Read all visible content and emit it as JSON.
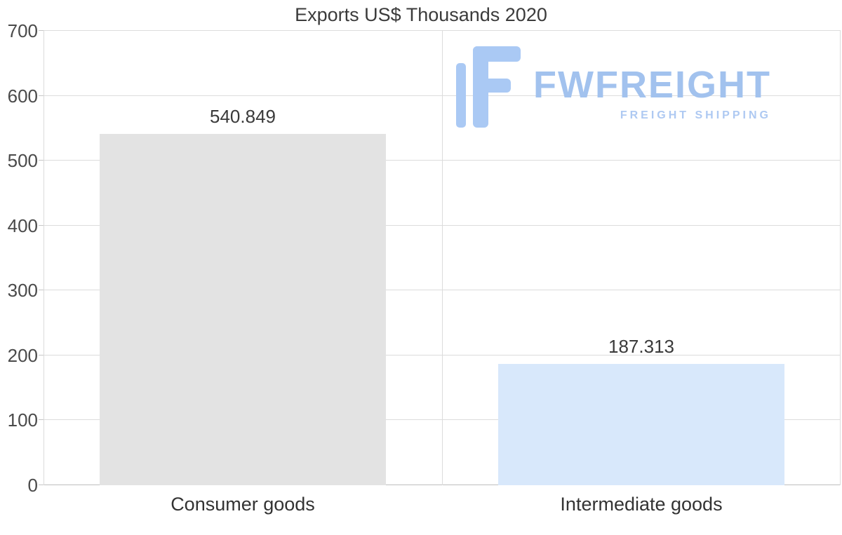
{
  "title": "Exports US$ Thousands 2020",
  "watermark": {
    "brand": "FWFREIGHT",
    "tagline": "FREIGHT SHIPPING",
    "icon": "fwfreight-logo-icon",
    "brand_color": "#a2c2ee"
  },
  "chart_data": {
    "type": "bar",
    "title": "Exports US$ Thousands 2020",
    "categories": [
      "Consumer goods",
      "Intermediate goods"
    ],
    "values": [
      540.849,
      187.313
    ],
    "value_labels": [
      "540.849",
      "187.313"
    ],
    "bar_colors": [
      "#e3e3e3",
      "#d8e8fb"
    ],
    "xlabel": "",
    "ylabel": "",
    "ylim": [
      0,
      700
    ],
    "yticks": [
      0,
      100,
      200,
      300,
      400,
      500,
      600,
      700
    ],
    "grid": true,
    "legend": false,
    "gridline_color": "#dcdcdc"
  }
}
